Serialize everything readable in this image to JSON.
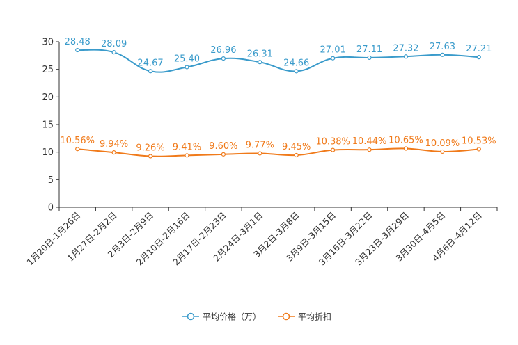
{
  "chart_data": {
    "type": "line",
    "title": "",
    "xlabel": "",
    "ylabel": "",
    "ylim": [
      0,
      30
    ],
    "yticks": [
      0,
      5,
      10,
      15,
      20,
      25,
      30
    ],
    "grid": false,
    "legend_position": "bottom-center",
    "categories": [
      "1月20日-1月26日",
      "1月27日-2月2日",
      "2月3日-2月9日",
      "2月10日-2月16日",
      "2月17日-2月23日",
      "2月24日-3月1日",
      "3月2日-3月8日",
      "3月9日-3月15日",
      "3月16日-3月22日",
      "3月23日-3月29日",
      "3月30日-4月5日",
      "4月6日-4月12日"
    ],
    "series": [
      {
        "name": "平均价格（万）",
        "color": "#3a9bcb",
        "values": [
          28.48,
          28.09,
          24.67,
          25.4,
          26.96,
          26.31,
          24.66,
          27.01,
          27.11,
          27.32,
          27.63,
          27.21
        ],
        "labels": [
          "28.48",
          "28.09",
          "24.67",
          "25.40",
          "26.96",
          "26.31",
          "24.66",
          "27.01",
          "27.11",
          "27.32",
          "27.63",
          "27.21"
        ]
      },
      {
        "name": "平均折扣",
        "color": "#f07a1a",
        "values": [
          10.56,
          9.94,
          9.26,
          9.41,
          9.6,
          9.77,
          9.45,
          10.38,
          10.44,
          10.65,
          10.09,
          10.53
        ],
        "labels": [
          "10.56%",
          "9.94%",
          "9.26%",
          "9.41%",
          "9.60%",
          "9.77%",
          "9.45%",
          "10.38%",
          "10.44%",
          "10.65%",
          "10.09%",
          "10.53%"
        ]
      }
    ]
  }
}
